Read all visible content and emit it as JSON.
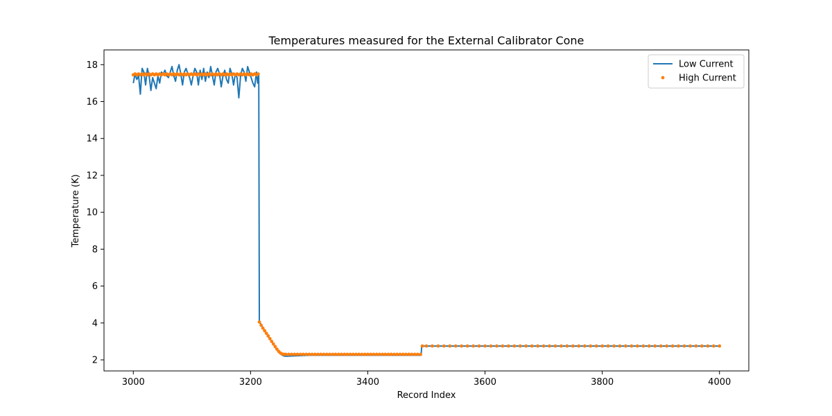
{
  "chart_data": {
    "type": "line",
    "title": "Temperatures measured for the External Calibrator Cone",
    "xlabel": "Record Index",
    "ylabel": "Temperature (K)",
    "xlim": [
      2950,
      4050
    ],
    "ylim": [
      1.4,
      18.8
    ],
    "xticks": [
      3000,
      3200,
      3400,
      3600,
      3800,
      4000
    ],
    "yticks": [
      2,
      4,
      6,
      8,
      10,
      12,
      14,
      16,
      18
    ],
    "grid": false,
    "legend_position": "top-right",
    "series": [
      {
        "name": "Low Current",
        "style": "line",
        "color": "#1f77b4",
        "points": [
          [
            3000,
            17.0
          ],
          [
            3003,
            17.5
          ],
          [
            3006,
            17.2
          ],
          [
            3009,
            17.4
          ],
          [
            3012,
            16.4
          ],
          [
            3015,
            17.8
          ],
          [
            3018,
            17.6
          ],
          [
            3021,
            16.9
          ],
          [
            3024,
            17.8
          ],
          [
            3027,
            17.4
          ],
          [
            3030,
            16.6
          ],
          [
            3033,
            17.3
          ],
          [
            3036,
            17.0
          ],
          [
            3039,
            16.7
          ],
          [
            3042,
            17.4
          ],
          [
            3045,
            17.0
          ],
          [
            3048,
            17.6
          ],
          [
            3051,
            17.5
          ],
          [
            3054,
            17.7
          ],
          [
            3057,
            17.4
          ],
          [
            3060,
            17.3
          ],
          [
            3063,
            17.6
          ],
          [
            3066,
            17.9
          ],
          [
            3069,
            17.4
          ],
          [
            3072,
            17.1
          ],
          [
            3075,
            17.7
          ],
          [
            3078,
            18.0
          ],
          [
            3081,
            17.5
          ],
          [
            3084,
            16.9
          ],
          [
            3087,
            17.6
          ],
          [
            3090,
            17.8
          ],
          [
            3093,
            17.5
          ],
          [
            3096,
            17.3
          ],
          [
            3099,
            16.9
          ],
          [
            3102,
            17.4
          ],
          [
            3105,
            17.8
          ],
          [
            3108,
            17.6
          ],
          [
            3111,
            16.9
          ],
          [
            3114,
            17.7
          ],
          [
            3117,
            17.2
          ],
          [
            3120,
            17.8
          ],
          [
            3123,
            17.1
          ],
          [
            3126,
            17.6
          ],
          [
            3129,
            17.3
          ],
          [
            3132,
            17.9
          ],
          [
            3135,
            17.4
          ],
          [
            3138,
            16.9
          ],
          [
            3141,
            17.6
          ],
          [
            3144,
            17.8
          ],
          [
            3147,
            17.5
          ],
          [
            3150,
            16.8
          ],
          [
            3153,
            17.4
          ],
          [
            3156,
            17.7
          ],
          [
            3159,
            17.2
          ],
          [
            3162,
            17.0
          ],
          [
            3165,
            17.8
          ],
          [
            3168,
            17.5
          ],
          [
            3171,
            16.9
          ],
          [
            3174,
            17.5
          ],
          [
            3177,
            17.3
          ],
          [
            3180,
            16.2
          ],
          [
            3183,
            17.4
          ],
          [
            3186,
            17.8
          ],
          [
            3189,
            17.6
          ],
          [
            3192,
            17.1
          ],
          [
            3195,
            17.9
          ],
          [
            3198,
            17.6
          ],
          [
            3201,
            17.3
          ],
          [
            3204,
            17.0
          ],
          [
            3207,
            16.8
          ],
          [
            3210,
            17.6
          ],
          [
            3212,
            17.0
          ],
          [
            3214,
            17.5
          ],
          [
            3215,
            4.1
          ],
          [
            3218,
            3.9
          ],
          [
            3222,
            3.7
          ],
          [
            3226,
            3.5
          ],
          [
            3230,
            3.3
          ],
          [
            3234,
            3.1
          ],
          [
            3238,
            2.9
          ],
          [
            3242,
            2.7
          ],
          [
            3246,
            2.5
          ],
          [
            3250,
            2.35
          ],
          [
            3254,
            2.25
          ],
          [
            3258,
            2.2
          ],
          [
            3262,
            2.2
          ],
          [
            3300,
            2.25
          ],
          [
            3350,
            2.25
          ],
          [
            3400,
            2.25
          ],
          [
            3450,
            2.25
          ],
          [
            3490,
            2.25
          ],
          [
            3491,
            2.25
          ],
          [
            3492,
            2.75
          ],
          [
            3550,
            2.75
          ],
          [
            3600,
            2.75
          ],
          [
            3700,
            2.75
          ],
          [
            3800,
            2.75
          ],
          [
            3900,
            2.75
          ],
          [
            4000,
            2.75
          ]
        ]
      },
      {
        "name": "High Current",
        "style": "scatter",
        "color": "#ff7f0e",
        "points": [
          [
            3000,
            17.45
          ],
          [
            3003,
            17.5
          ],
          [
            3006,
            17.45
          ],
          [
            3009,
            17.5
          ],
          [
            3012,
            17.45
          ],
          [
            3015,
            17.5
          ],
          [
            3018,
            17.45
          ],
          [
            3021,
            17.5
          ],
          [
            3024,
            17.45
          ],
          [
            3027,
            17.5
          ],
          [
            3030,
            17.45
          ],
          [
            3033,
            17.5
          ],
          [
            3036,
            17.45
          ],
          [
            3039,
            17.5
          ],
          [
            3042,
            17.45
          ],
          [
            3045,
            17.5
          ],
          [
            3048,
            17.45
          ],
          [
            3051,
            17.5
          ],
          [
            3054,
            17.45
          ],
          [
            3057,
            17.5
          ],
          [
            3060,
            17.45
          ],
          [
            3063,
            17.5
          ],
          [
            3066,
            17.45
          ],
          [
            3069,
            17.5
          ],
          [
            3072,
            17.45
          ],
          [
            3075,
            17.5
          ],
          [
            3078,
            17.45
          ],
          [
            3081,
            17.5
          ],
          [
            3084,
            17.45
          ],
          [
            3087,
            17.5
          ],
          [
            3090,
            17.45
          ],
          [
            3093,
            17.5
          ],
          [
            3096,
            17.45
          ],
          [
            3099,
            17.5
          ],
          [
            3102,
            17.45
          ],
          [
            3105,
            17.5
          ],
          [
            3108,
            17.45
          ],
          [
            3111,
            17.5
          ],
          [
            3114,
            17.45
          ],
          [
            3117,
            17.5
          ],
          [
            3120,
            17.45
          ],
          [
            3123,
            17.5
          ],
          [
            3126,
            17.45
          ],
          [
            3129,
            17.5
          ],
          [
            3132,
            17.45
          ],
          [
            3135,
            17.5
          ],
          [
            3138,
            17.45
          ],
          [
            3141,
            17.5
          ],
          [
            3144,
            17.45
          ],
          [
            3147,
            17.5
          ],
          [
            3150,
            17.45
          ],
          [
            3153,
            17.5
          ],
          [
            3156,
            17.45
          ],
          [
            3159,
            17.5
          ],
          [
            3162,
            17.45
          ],
          [
            3165,
            17.5
          ],
          [
            3168,
            17.45
          ],
          [
            3171,
            17.5
          ],
          [
            3174,
            17.45
          ],
          [
            3177,
            17.5
          ],
          [
            3180,
            17.45
          ],
          [
            3183,
            17.5
          ],
          [
            3186,
            17.45
          ],
          [
            3189,
            17.5
          ],
          [
            3192,
            17.45
          ],
          [
            3195,
            17.5
          ],
          [
            3198,
            17.45
          ],
          [
            3201,
            17.5
          ],
          [
            3204,
            17.45
          ],
          [
            3207,
            17.5
          ],
          [
            3210,
            17.45
          ],
          [
            3213,
            17.5
          ],
          [
            3215,
            4.05
          ],
          [
            3218,
            3.88
          ],
          [
            3221,
            3.72
          ],
          [
            3224,
            3.58
          ],
          [
            3227,
            3.44
          ],
          [
            3230,
            3.3
          ],
          [
            3233,
            3.15
          ],
          [
            3236,
            3.0
          ],
          [
            3239,
            2.86
          ],
          [
            3242,
            2.72
          ],
          [
            3245,
            2.58
          ],
          [
            3248,
            2.46
          ],
          [
            3251,
            2.37
          ],
          [
            3254,
            2.32
          ],
          [
            3257,
            2.3
          ],
          [
            3260,
            2.3
          ],
          [
            3265,
            2.3
          ],
          [
            3270,
            2.3
          ],
          [
            3275,
            2.3
          ],
          [
            3280,
            2.3
          ],
          [
            3285,
            2.3
          ],
          [
            3290,
            2.3
          ],
          [
            3295,
            2.3
          ],
          [
            3300,
            2.3
          ],
          [
            3305,
            2.3
          ],
          [
            3310,
            2.3
          ],
          [
            3315,
            2.3
          ],
          [
            3320,
            2.3
          ],
          [
            3325,
            2.3
          ],
          [
            3330,
            2.3
          ],
          [
            3335,
            2.3
          ],
          [
            3340,
            2.3
          ],
          [
            3345,
            2.3
          ],
          [
            3350,
            2.3
          ],
          [
            3355,
            2.3
          ],
          [
            3360,
            2.3
          ],
          [
            3365,
            2.3
          ],
          [
            3370,
            2.3
          ],
          [
            3375,
            2.3
          ],
          [
            3380,
            2.3
          ],
          [
            3385,
            2.3
          ],
          [
            3390,
            2.3
          ],
          [
            3395,
            2.3
          ],
          [
            3400,
            2.3
          ],
          [
            3405,
            2.3
          ],
          [
            3410,
            2.3
          ],
          [
            3415,
            2.3
          ],
          [
            3420,
            2.3
          ],
          [
            3425,
            2.3
          ],
          [
            3430,
            2.3
          ],
          [
            3435,
            2.3
          ],
          [
            3440,
            2.3
          ],
          [
            3445,
            2.3
          ],
          [
            3450,
            2.3
          ],
          [
            3455,
            2.3
          ],
          [
            3460,
            2.3
          ],
          [
            3465,
            2.3
          ],
          [
            3470,
            2.3
          ],
          [
            3475,
            2.3
          ],
          [
            3480,
            2.3
          ],
          [
            3485,
            2.3
          ],
          [
            3490,
            2.3
          ],
          [
            3493,
            2.75
          ],
          [
            3500,
            2.75
          ],
          [
            3510,
            2.75
          ],
          [
            3520,
            2.75
          ],
          [
            3530,
            2.75
          ],
          [
            3540,
            2.75
          ],
          [
            3550,
            2.75
          ],
          [
            3560,
            2.75
          ],
          [
            3570,
            2.75
          ],
          [
            3580,
            2.75
          ],
          [
            3590,
            2.75
          ],
          [
            3600,
            2.75
          ],
          [
            3610,
            2.75
          ],
          [
            3620,
            2.75
          ],
          [
            3630,
            2.75
          ],
          [
            3640,
            2.75
          ],
          [
            3650,
            2.75
          ],
          [
            3660,
            2.75
          ],
          [
            3670,
            2.75
          ],
          [
            3680,
            2.75
          ],
          [
            3690,
            2.75
          ],
          [
            3700,
            2.75
          ],
          [
            3710,
            2.75
          ],
          [
            3720,
            2.75
          ],
          [
            3730,
            2.75
          ],
          [
            3740,
            2.75
          ],
          [
            3750,
            2.75
          ],
          [
            3760,
            2.75
          ],
          [
            3770,
            2.75
          ],
          [
            3780,
            2.75
          ],
          [
            3790,
            2.75
          ],
          [
            3800,
            2.75
          ],
          [
            3810,
            2.75
          ],
          [
            3820,
            2.75
          ],
          [
            3830,
            2.75
          ],
          [
            3840,
            2.75
          ],
          [
            3850,
            2.75
          ],
          [
            3860,
            2.75
          ],
          [
            3870,
            2.75
          ],
          [
            3880,
            2.75
          ],
          [
            3890,
            2.75
          ],
          [
            3900,
            2.75
          ],
          [
            3910,
            2.75
          ],
          [
            3920,
            2.75
          ],
          [
            3930,
            2.75
          ],
          [
            3940,
            2.75
          ],
          [
            3950,
            2.75
          ],
          [
            3960,
            2.75
          ],
          [
            3970,
            2.75
          ],
          [
            3980,
            2.75
          ],
          [
            3990,
            2.75
          ],
          [
            4000,
            2.75
          ]
        ]
      }
    ]
  }
}
